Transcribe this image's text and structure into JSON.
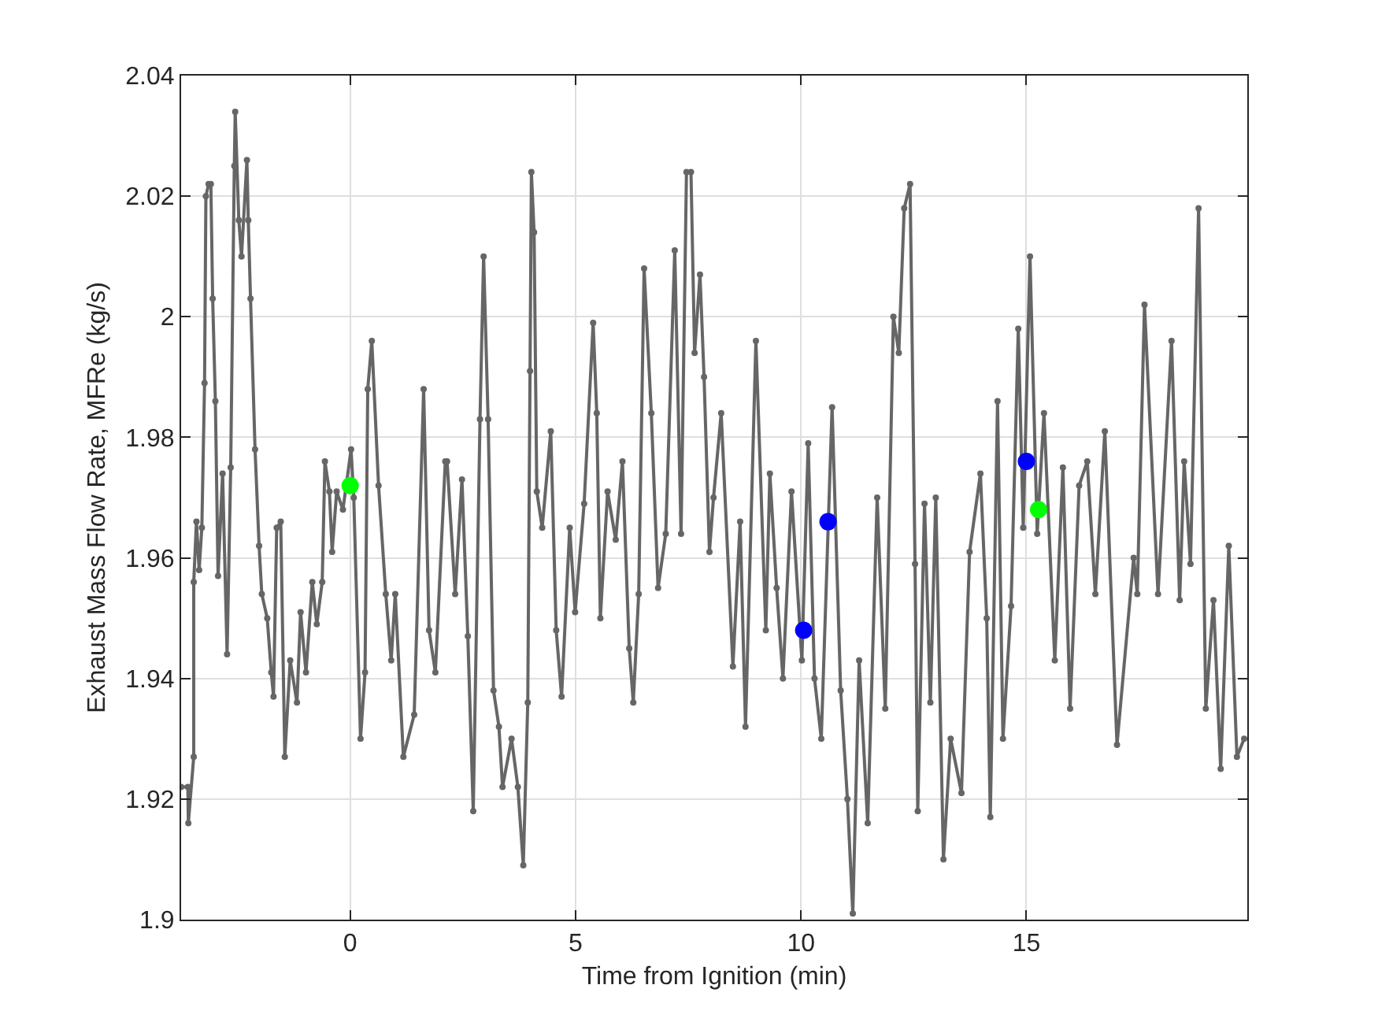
{
  "chart_data": {
    "type": "line",
    "xlabel": "Time from Ignition (min)",
    "ylabel": "Exhaust Mass Flow Rate, MFRe (kg/s)",
    "xlim": [
      -3.75,
      19.9
    ],
    "ylim": [
      1.9,
      2.04
    ],
    "xticks": [
      0,
      5,
      10,
      15
    ],
    "yticks": [
      1.9,
      1.92,
      1.94,
      1.96,
      1.98,
      2,
      2.02,
      2.04
    ],
    "grid": true,
    "marker": "circle",
    "line_style": "solid",
    "series": [
      {
        "color": "#666666",
        "x": [
          -3.75,
          -3.6,
          -3.59,
          -3.47,
          -3.47,
          -3.41,
          -3.35,
          -3.29,
          -3.23,
          -3.2,
          -3.14,
          -3.09,
          -3.05,
          -2.99,
          -2.93,
          -2.83,
          -2.73,
          -2.65,
          -2.57,
          -2.55,
          -2.47,
          -2.41,
          -2.29,
          -2.26,
          -2.21,
          -2.11,
          -2.02,
          -1.96,
          -1.84,
          -1.75,
          -1.7,
          -1.63,
          -1.54,
          -1.45,
          -1.33,
          -1.18,
          -1.1,
          -0.98,
          -0.84,
          -0.74,
          -0.62,
          -0.56,
          -0.46,
          -0.4,
          -0.3,
          -0.16,
          0.02,
          0.08,
          0.23,
          0.33,
          0.39,
          0.48,
          0.63,
          0.79,
          0.91,
          1.0,
          1.18,
          1.42,
          1.63,
          1.75,
          1.89,
          2.11,
          2.15,
          2.33,
          2.48,
          2.61,
          2.73,
          2.88,
          2.96,
          3.06,
          3.18,
          3.3,
          3.38,
          3.58,
          3.72,
          3.84,
          3.94,
          3.99,
          4.02,
          4.08,
          4.14,
          4.26,
          4.45,
          4.57,
          4.69,
          4.87,
          4.99,
          5.19,
          5.39,
          5.47,
          5.55,
          5.71,
          5.89,
          6.04,
          6.19,
          6.28,
          6.4,
          6.52,
          6.68,
          6.83,
          7.0,
          7.2,
          7.34,
          7.46,
          7.56,
          7.64,
          7.76,
          7.85,
          7.97,
          8.06,
          8.23,
          8.49,
          8.65,
          8.77,
          9.0,
          9.22,
          9.31,
          9.46,
          9.6,
          9.79,
          10.02,
          10.16,
          10.3,
          10.45,
          10.69,
          10.88,
          11.03,
          11.15,
          11.29,
          11.48,
          11.69,
          11.87,
          12.05,
          12.17,
          12.29,
          12.42,
          12.53,
          12.59,
          12.74,
          12.87,
          12.99,
          13.16,
          13.32,
          13.56,
          13.74,
          13.98,
          14.12,
          14.2,
          14.36,
          14.48,
          14.66,
          14.82,
          14.93,
          15.08,
          15.24,
          15.39,
          15.63,
          15.81,
          15.97,
          16.17,
          16.35,
          16.53,
          16.74,
          17.01,
          17.38,
          17.46,
          17.62,
          17.92,
          18.22,
          18.4,
          18.5,
          18.64,
          18.82,
          18.98,
          19.15,
          19.31,
          19.49,
          19.67,
          19.83
        ],
        "values": [
          1.922,
          1.922,
          1.916,
          1.927,
          1.956,
          1.966,
          1.958,
          1.965,
          1.989,
          2.02,
          2.022,
          2.022,
          2.003,
          1.986,
          1.957,
          1.974,
          1.944,
          1.975,
          2.025,
          2.034,
          2.016,
          2.01,
          2.026,
          2.016,
          2.003,
          1.978,
          1.962,
          1.954,
          1.95,
          1.941,
          1.937,
          1.965,
          1.966,
          1.927,
          1.943,
          1.936,
          1.951,
          1.941,
          1.956,
          1.949,
          1.956,
          1.976,
          1.971,
          1.961,
          1.971,
          1.968,
          1.978,
          1.97,
          1.93,
          1.941,
          1.988,
          1.996,
          1.972,
          1.954,
          1.943,
          1.954,
          1.927,
          1.934,
          1.988,
          1.948,
          1.941,
          1.976,
          1.976,
          1.954,
          1.973,
          1.947,
          1.918,
          1.983,
          2.01,
          1.983,
          1.938,
          1.932,
          1.922,
          1.93,
          1.922,
          1.909,
          1.936,
          1.991,
          2.024,
          2.014,
          1.971,
          1.965,
          1.981,
          1.948,
          1.937,
          1.965,
          1.951,
          1.969,
          1.999,
          1.984,
          1.95,
          1.971,
          1.963,
          1.976,
          1.945,
          1.936,
          1.954,
          2.008,
          1.984,
          1.955,
          1.964,
          2.011,
          1.964,
          2.024,
          2.024,
          1.994,
          2.007,
          1.99,
          1.961,
          1.97,
          1.984,
          1.942,
          1.966,
          1.932,
          1.996,
          1.948,
          1.974,
          1.955,
          1.94,
          1.971,
          1.943,
          1.979,
          1.94,
          1.93,
          1.985,
          1.938,
          1.92,
          1.901,
          1.943,
          1.916,
          1.97,
          1.935,
          2.0,
          1.994,
          2.018,
          2.022,
          1.959,
          1.918,
          1.969,
          1.936,
          1.97,
          1.91,
          1.93,
          1.921,
          1.961,
          1.974,
          1.95,
          1.917,
          1.986,
          1.93,
          1.952,
          1.998,
          1.965,
          2.01,
          1.964,
          1.984,
          1.943,
          1.975,
          1.935,
          1.972,
          1.976,
          1.954,
          1.981,
          1.929,
          1.96,
          1.954,
          2.002,
          1.954,
          1.996,
          1.953,
          1.976,
          1.959,
          2.018,
          1.935,
          1.953,
          1.925,
          1.962,
          1.927,
          1.93
        ]
      },
      {
        "type": "scatter",
        "color": "#00ff00",
        "x": [
          0,
          15.27
        ],
        "values": [
          1.972,
          1.968
        ]
      },
      {
        "type": "scatter",
        "color": "#0000ff",
        "x": [
          10.06,
          10.6,
          15.0
        ],
        "values": [
          1.948,
          1.966,
          1.976
        ]
      }
    ]
  }
}
